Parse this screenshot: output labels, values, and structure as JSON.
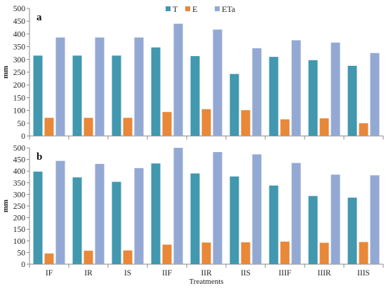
{
  "chart_data": {
    "type": "bar",
    "legend": {
      "placement": "top-center",
      "entries": [
        {
          "name": "T",
          "color": "#4198AF"
        },
        {
          "name": "E",
          "color": "#E88838"
        },
        {
          "name": "ETa",
          "color": "#93A9D4"
        }
      ]
    },
    "xlabel": "Treatments",
    "ylabel": "mm",
    "ylim": [
      0,
      500
    ],
    "yticks": [
      0,
      50,
      100,
      150,
      200,
      250,
      300,
      350,
      400,
      450,
      500
    ],
    "ytick_labels": [
      "0",
      "50",
      "100",
      "150",
      "200",
      "250",
      "300",
      "350",
      "400",
      "450",
      "500"
    ],
    "categories": [
      "IF",
      "IR",
      "IS",
      "IIF",
      "IIR",
      "IIS",
      "IIIF",
      "IIIR",
      "IIIS"
    ],
    "grid": false,
    "panels": [
      {
        "label": "a",
        "series": [
          {
            "name": "T",
            "values": [
              315,
              315,
              315,
              347,
              313,
              243,
              310,
              297,
              275
            ]
          },
          {
            "name": "E",
            "values": [
              71,
              71,
              71,
              94,
              105,
              101,
              65,
              69,
              50
            ]
          },
          {
            "name": "ETa",
            "values": [
              386,
              386,
              386,
              440,
              417,
              344,
              375,
              366,
              325
            ]
          }
        ]
      },
      {
        "label": "b",
        "series": [
          {
            "name": "T",
            "values": [
              398,
              373,
              354,
              433,
              390,
              377,
              338,
              293,
              286
            ]
          },
          {
            "name": "E",
            "values": [
              46,
              58,
              59,
              84,
              93,
              94,
              97,
              92,
              95
            ]
          },
          {
            "name": "ETa",
            "values": [
              444,
              431,
              413,
              500,
              482,
              472,
              435,
              385,
              382
            ]
          }
        ]
      }
    ]
  }
}
